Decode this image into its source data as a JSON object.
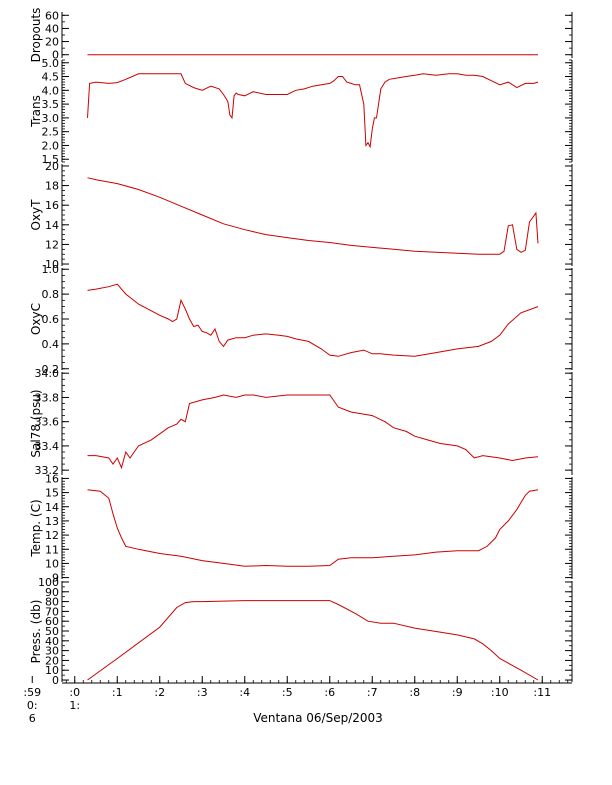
{
  "chart_data": {
    "type": "line",
    "title": "",
    "xlabel": "Ventana 06/Sep/2003",
    "x_ticks": [
      ":59",
      ":0",
      ":1",
      ":2",
      ":3",
      ":4",
      ":5",
      ":6",
      ":7",
      ":8",
      ":9",
      ":10",
      ":11"
    ],
    "x_tick_sublabels": [
      "0:",
      "1:"
    ],
    "x_tick_sublabels2": [
      "6",
      ""
    ],
    "xlim": [
      -0.3,
      11.7
    ],
    "line_color": "#cc0000",
    "panels": [
      {
        "ylabel": "Dropouts",
        "ylim": [
          -5,
          65
        ],
        "yticks": [
          "0",
          "20",
          "40",
          "60"
        ],
        "ytick_values": [
          0,
          20,
          40,
          60
        ],
        "minor": 10,
        "x": [
          0.3,
          1,
          2,
          3,
          4,
          5,
          6,
          7,
          8,
          9,
          10,
          10.9
        ],
        "values": [
          0,
          0,
          0,
          0,
          0,
          0,
          0,
          0,
          0,
          0,
          0,
          0
        ]
      },
      {
        "ylabel": "Trans",
        "ylim": [
          1.4,
          5.1
        ],
        "yticks": [
          "1.5",
          "2.0",
          "2.5",
          "3.0",
          "3.5",
          "4.0",
          "4.5",
          "5.0"
        ],
        "ytick_values": [
          1.5,
          2.0,
          2.5,
          3.0,
          3.5,
          4.0,
          4.5,
          5.0
        ],
        "minor": 0.1,
        "x": [
          0.3,
          0.35,
          0.5,
          0.8,
          1.0,
          1.2,
          1.5,
          2.0,
          2.5,
          2.6,
          2.8,
          3.0,
          3.2,
          3.4,
          3.5,
          3.6,
          3.65,
          3.7,
          3.75,
          3.8,
          3.85,
          4.0,
          4.2,
          4.5,
          4.8,
          5.0,
          5.2,
          5.4,
          5.6,
          5.8,
          6.0,
          6.1,
          6.2,
          6.3,
          6.4,
          6.5,
          6.6,
          6.7,
          6.8,
          6.85,
          6.9,
          6.95,
          7.0,
          7.05,
          7.1,
          7.2,
          7.3,
          7.4,
          7.6,
          7.8,
          8.0,
          8.2,
          8.5,
          8.8,
          9.0,
          9.2,
          9.4,
          9.6,
          9.8,
          10.0,
          10.2,
          10.4,
          10.6,
          10.8,
          10.9
        ],
        "values": [
          3.0,
          4.25,
          4.3,
          4.25,
          4.28,
          4.4,
          4.6,
          4.6,
          4.6,
          4.25,
          4.1,
          4.0,
          4.15,
          4.05,
          3.85,
          3.6,
          3.1,
          3.0,
          3.8,
          3.9,
          3.85,
          3.8,
          3.95,
          3.85,
          3.85,
          3.85,
          4.0,
          4.05,
          4.15,
          4.2,
          4.25,
          4.35,
          4.5,
          4.5,
          4.3,
          4.25,
          4.2,
          4.2,
          3.5,
          2.0,
          2.1,
          1.95,
          2.6,
          3.0,
          3.0,
          4.05,
          4.3,
          4.4,
          4.45,
          4.5,
          4.55,
          4.6,
          4.55,
          4.6,
          4.6,
          4.55,
          4.55,
          4.5,
          4.35,
          4.2,
          4.3,
          4.1,
          4.25,
          4.25,
          4.3
        ]
      },
      {
        "ylabel": "OxyT",
        "ylim": [
          9.8,
          20.2
        ],
        "yticks": [
          "10",
          "12",
          "14",
          "16",
          "18",
          "20"
        ],
        "ytick_values": [
          10,
          12,
          14,
          16,
          18,
          20
        ],
        "minor": 0.5,
        "x": [
          0.3,
          0.5,
          1.0,
          1.5,
          2.0,
          2.5,
          3.0,
          3.5,
          4.0,
          4.5,
          5.0,
          5.5,
          6.0,
          6.5,
          7.0,
          7.5,
          8.0,
          8.5,
          9.0,
          9.5,
          10.0,
          10.1,
          10.2,
          10.3,
          10.4,
          10.5,
          10.6,
          10.7,
          10.8,
          10.85,
          10.9
        ],
        "values": [
          18.8,
          18.6,
          18.2,
          17.6,
          16.8,
          15.9,
          15.0,
          14.1,
          13.5,
          13.0,
          12.7,
          12.4,
          12.2,
          11.9,
          11.7,
          11.5,
          11.3,
          11.2,
          11.1,
          11.0,
          11.0,
          11.3,
          13.9,
          14.0,
          11.5,
          11.2,
          11.4,
          14.3,
          14.9,
          15.2,
          12.1
        ]
      },
      {
        "ylabel": "OxyC",
        "ylim": [
          0.19,
          1.01
        ],
        "yticks": [
          "0.2",
          "0.4",
          "0.6",
          "0.8",
          "1.0"
        ],
        "ytick_values": [
          0.2,
          0.4,
          0.6,
          0.8,
          1.0
        ],
        "minor": 0.05,
        "x": [
          0.3,
          0.5,
          0.8,
          1.0,
          1.2,
          1.5,
          2.0,
          2.2,
          2.3,
          2.4,
          2.5,
          2.6,
          2.7,
          2.8,
          2.9,
          3.0,
          3.1,
          3.2,
          3.3,
          3.4,
          3.5,
          3.6,
          3.7,
          3.8,
          4.0,
          4.2,
          4.5,
          4.8,
          5.0,
          5.2,
          5.5,
          5.8,
          6.0,
          6.2,
          6.5,
          6.8,
          7.0,
          7.2,
          7.5,
          8.0,
          8.5,
          9.0,
          9.5,
          9.8,
          10.0,
          10.2,
          10.5,
          10.9
        ],
        "values": [
          0.83,
          0.84,
          0.86,
          0.88,
          0.8,
          0.72,
          0.63,
          0.6,
          0.58,
          0.6,
          0.75,
          0.68,
          0.6,
          0.54,
          0.55,
          0.5,
          0.49,
          0.47,
          0.52,
          0.42,
          0.38,
          0.43,
          0.44,
          0.45,
          0.45,
          0.47,
          0.48,
          0.47,
          0.46,
          0.44,
          0.42,
          0.36,
          0.31,
          0.3,
          0.33,
          0.35,
          0.32,
          0.32,
          0.31,
          0.3,
          0.33,
          0.36,
          0.38,
          0.42,
          0.47,
          0.56,
          0.65,
          0.7
        ]
      },
      {
        "ylabel": "Sal78 (psu)",
        "ylim": [
          33.16,
          34.01
        ],
        "yticks": [
          "33.2",
          "33.4",
          "33.6",
          "33.8",
          "34.0"
        ],
        "ytick_values": [
          33.2,
          33.4,
          33.6,
          33.8,
          34.0
        ],
        "minor": 0.05,
        "x": [
          0.3,
          0.5,
          0.8,
          0.9,
          1.0,
          1.1,
          1.2,
          1.3,
          1.5,
          1.8,
          2.0,
          2.2,
          2.4,
          2.5,
          2.6,
          2.7,
          3.0,
          3.3,
          3.5,
          3.8,
          4.0,
          4.2,
          4.5,
          5.0,
          5.5,
          6.0,
          6.2,
          6.5,
          7.0,
          7.3,
          7.5,
          7.8,
          8.0,
          8.3,
          8.6,
          9.0,
          9.2,
          9.4,
          9.6,
          10.0,
          10.3,
          10.6,
          10.9
        ],
        "values": [
          33.32,
          33.32,
          33.3,
          33.25,
          33.3,
          33.22,
          33.35,
          33.3,
          33.4,
          33.45,
          33.5,
          33.55,
          33.58,
          33.62,
          33.6,
          33.75,
          33.78,
          33.8,
          33.82,
          33.8,
          33.82,
          33.82,
          33.8,
          33.82,
          33.82,
          33.82,
          33.72,
          33.68,
          33.65,
          33.6,
          33.55,
          33.52,
          33.48,
          33.45,
          33.42,
          33.4,
          33.37,
          33.3,
          33.32,
          33.3,
          33.28,
          33.3,
          33.31
        ]
      },
      {
        "ylabel": "Temp. (C)",
        "ylim": [
          8.9,
          16.1
        ],
        "yticks": [
          "9",
          "10",
          "11",
          "12",
          "13",
          "14",
          "15",
          "16"
        ],
        "ytick_values": [
          9,
          10,
          11,
          12,
          13,
          14,
          15,
          16
        ],
        "minor": 0.2,
        "x": [
          0.3,
          0.6,
          0.8,
          0.9,
          1.0,
          1.1,
          1.2,
          1.5,
          2.0,
          2.5,
          3.0,
          3.5,
          4.0,
          4.5,
          5.0,
          5.5,
          6.0,
          6.2,
          6.5,
          7.0,
          7.5,
          8.0,
          8.5,
          9.0,
          9.5,
          9.7,
          9.9,
          10.0,
          10.2,
          10.4,
          10.5,
          10.6,
          10.7,
          10.9
        ],
        "values": [
          15.2,
          15.1,
          14.6,
          13.5,
          12.5,
          11.8,
          11.2,
          11.0,
          10.7,
          10.5,
          10.2,
          10.0,
          9.8,
          9.85,
          9.8,
          9.8,
          9.85,
          10.3,
          10.4,
          10.4,
          10.5,
          10.6,
          10.8,
          10.9,
          10.9,
          11.2,
          11.8,
          12.4,
          13.0,
          13.8,
          14.3,
          14.8,
          15.1,
          15.2
        ]
      },
      {
        "ylabel": "Press. (db)",
        "ylim": [
          -2,
          101
        ],
        "yticks": [
          "0",
          "10",
          "20",
          "30",
          "40",
          "50",
          "60",
          "70",
          "80",
          "90",
          "100"
        ],
        "ytick_values": [
          0,
          10,
          20,
          30,
          40,
          50,
          60,
          70,
          80,
          90,
          100
        ],
        "minor": 5,
        "x": [
          0.3,
          1.0,
          2.0,
          2.4,
          2.6,
          2.8,
          3.0,
          4.0,
          5.0,
          6.0,
          6.2,
          6.6,
          6.9,
          7.2,
          7.5,
          8.0,
          9.0,
          9.4,
          9.6,
          9.8,
          10.0,
          10.5,
          10.9
        ],
        "values": [
          0,
          22,
          54,
          74,
          79,
          80,
          80,
          81,
          81,
          81,
          77,
          68,
          60,
          58,
          58,
          53,
          46,
          42,
          37,
          30,
          22,
          10,
          0
        ]
      }
    ]
  }
}
